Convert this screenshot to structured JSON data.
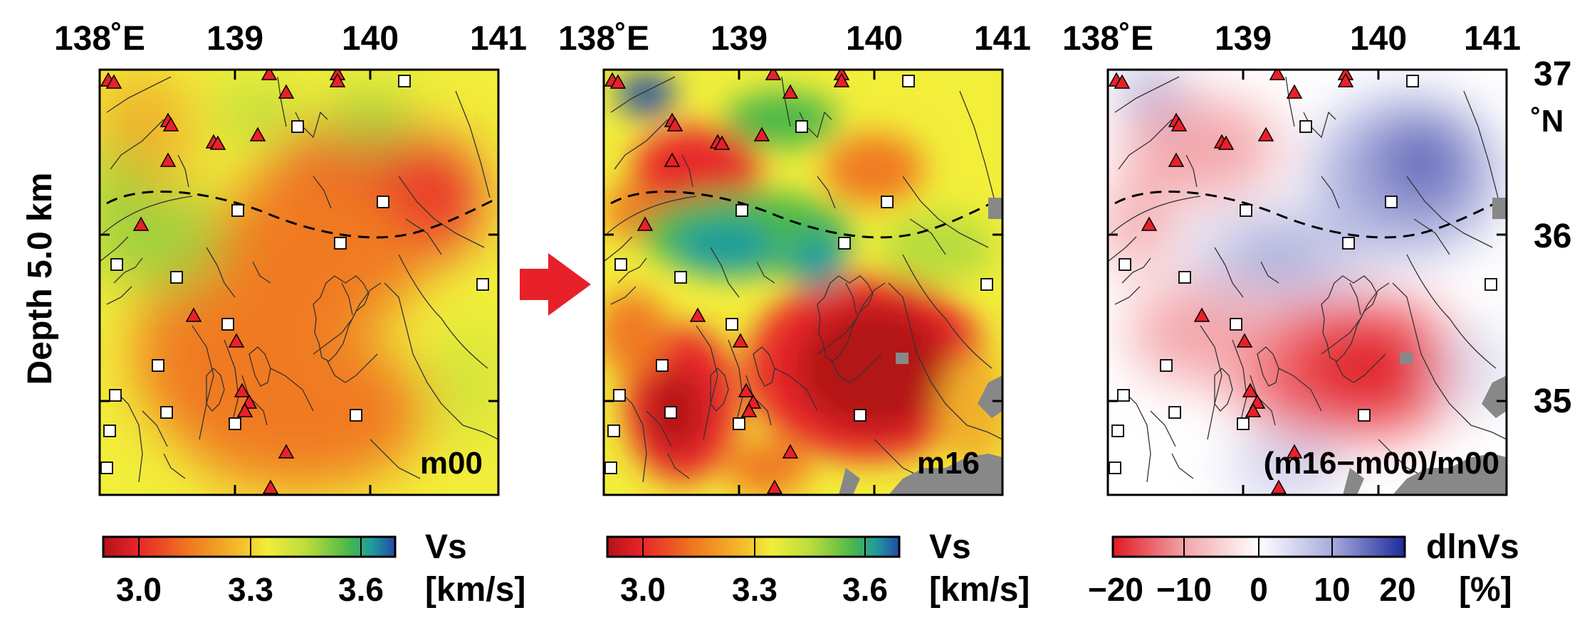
{
  "depth_label": "Depth 5.0 km",
  "top_lon_ticks": [
    "138˚E",
    "139",
    "140",
    "141"
  ],
  "right_lat_ticks": [
    "37",
    "˚N",
    "36",
    "35"
  ],
  "arrow_color": "#e8202a",
  "panels": [
    {
      "label": "m00",
      "colorbar_title": "Vs",
      "colorbar_unit": "[km/s]",
      "colorbar_ticks": [
        "3.0",
        "3.3",
        "3.6"
      ]
    },
    {
      "label": "m16",
      "colorbar_title": "Vs",
      "colorbar_unit": "[km/s]",
      "colorbar_ticks": [
        "3.0",
        "3.3",
        "3.6"
      ]
    },
    {
      "label": "(m16−m00)/m00",
      "colorbar_title": "dlnVs",
      "colorbar_unit": "[%]",
      "colorbar_ticks": [
        "−20",
        "−10",
        "0",
        "10",
        "20"
      ]
    }
  ],
  "symbols": {
    "volcano_color": "#e8202a",
    "station_color": "#ffffff",
    "masked_color": "#888888"
  },
  "colormaps": {
    "vs": [
      "#b31218",
      "#e8262a",
      "#f07a20",
      "#f4c22c",
      "#f2ee3a",
      "#b9dc3c",
      "#4cb84a",
      "#1f9c9c",
      "#2448a8"
    ],
    "dlnvs": [
      "#e01a22",
      "#f3a6aa",
      "#ffffff",
      "#a8acdc",
      "#1f2a9c"
    ]
  }
}
